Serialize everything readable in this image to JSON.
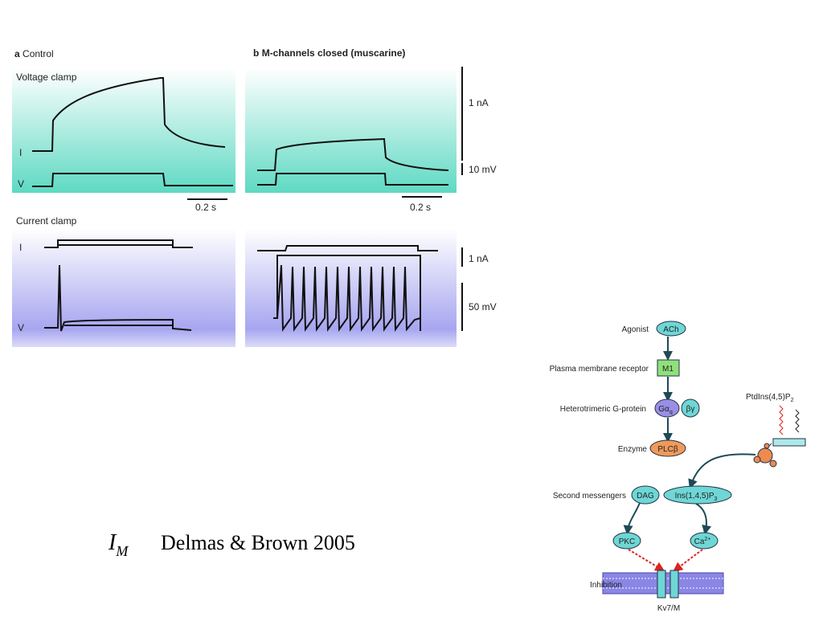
{
  "panel_a": {
    "letter": "a",
    "title": "Control"
  },
  "panel_b": {
    "letter": "b",
    "title": "M-channels closed (muscarine)"
  },
  "voltage_clamp": {
    "label": "Voltage clamp",
    "trace_labels": [
      "I",
      "V"
    ],
    "time_scale_a": "0.2 s",
    "time_scale_b": "0.2 s",
    "current_scale": "1 nA",
    "voltage_scale": "10 mV"
  },
  "current_clamp": {
    "label": "Current clamp",
    "trace_labels": [
      "I",
      "V"
    ],
    "current_scale": "1 nA",
    "voltage_scale": "50 mV"
  },
  "pathway": {
    "steps": [
      {
        "label": "Agonist",
        "node": "ACh"
      },
      {
        "label": "Plasma membrane receptor",
        "node": "M1"
      },
      {
        "label": "Heterotrimeric G-protein",
        "node": "Gα",
        "node_sub": "q",
        "partner": "βγ"
      },
      {
        "label": "Enzyme",
        "node": "PLCβ"
      },
      {
        "label": "Second messengers",
        "node": "DAG",
        "partner": "Ins(1,4,5)P",
        "partner_sub": "3"
      }
    ],
    "lipid": {
      "text": "PtdIns(4,5)P",
      "sub": "2"
    },
    "effectors": [
      {
        "text": "PKC"
      },
      {
        "text": "Ca",
        "sup": "2+"
      }
    ],
    "inhibition": "Inhibition",
    "channel": "Kv7/M"
  },
  "caption": {
    "symbol": "I",
    "symbol_sub": "M",
    "citation": "Delmas & Brown 2005"
  }
}
